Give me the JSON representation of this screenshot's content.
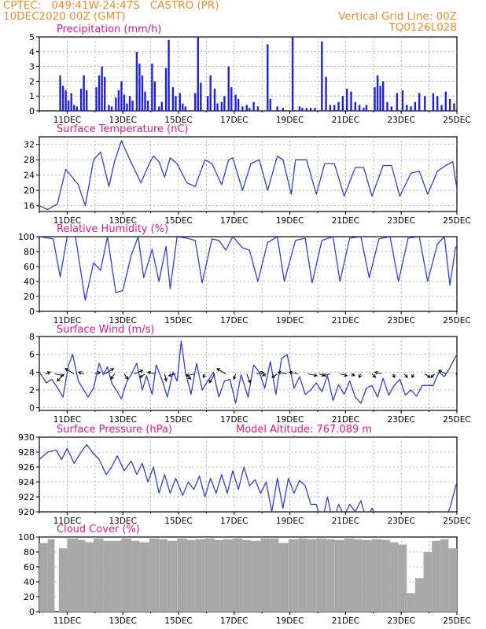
{
  "header": {
    "line1_left": "CPTEC:   049:41W-24:47S   CASTRO (PR)",
    "line2_left": "10DEC2020 00Z (GMT)",
    "line1_right": "Vertical Grid Line: 00Z",
    "line2_right": "TQ0126L028"
  },
  "colors": {
    "header": "#f08c28",
    "title": "#e0198c",
    "line": "#2f3fd8",
    "bar": "#2020e0",
    "cloud": "#a8a8a8",
    "grid": "#a0a0a0",
    "arrow": "#000000"
  },
  "x_ticks": [
    "11DEC",
    "13DEC",
    "15DEC",
    "17DEC",
    "19DEC",
    "21DEC",
    "23DEC",
    "25DEC"
  ],
  "x_tick_days": [
    1,
    3,
    5,
    7,
    9,
    11,
    13,
    15
  ],
  "chart_data": [
    {
      "id": "precip",
      "type": "bar",
      "title": "Precipitation (mm/h)",
      "x_unit": "days since 10DEC2020 00Z",
      "ylim": [
        0,
        5
      ],
      "yticks": [
        0,
        1,
        2,
        3,
        4,
        5
      ],
      "x": [
        0.75,
        0.85,
        0.95,
        1.05,
        1.15,
        1.25,
        1.35,
        1.5,
        1.6,
        1.7,
        2.05,
        2.15,
        2.25,
        2.35,
        2.5,
        2.6,
        2.75,
        2.85,
        2.95,
        3.05,
        3.15,
        3.25,
        3.35,
        3.5,
        3.6,
        3.7,
        3.8,
        3.9,
        4.05,
        4.15,
        4.3,
        4.4,
        4.55,
        4.65,
        4.8,
        4.9,
        5.05,
        5.15,
        5.25,
        5.6,
        5.7,
        5.8,
        6.05,
        6.15,
        6.3,
        6.4,
        6.55,
        6.65,
        6.8,
        6.9,
        7.05,
        7.15,
        7.3,
        7.45,
        7.55,
        7.7,
        7.85,
        8.2,
        8.3,
        8.55,
        8.75,
        9.1,
        9.35,
        9.45,
        9.6,
        9.75,
        9.9,
        10.15,
        10.3,
        10.45,
        10.6,
        10.75,
        10.9,
        11.05,
        11.2,
        11.35,
        11.5,
        11.65,
        11.75,
        12.05,
        12.15,
        12.25,
        12.35,
        12.5,
        12.65,
        12.85,
        13.05,
        13.2,
        13.35,
        13.5,
        13.65,
        13.85,
        14.15,
        14.3,
        14.45,
        14.6,
        14.75,
        14.9
      ],
      "values": [
        2.4,
        1.7,
        1.4,
        0.7,
        1.2,
        0.4,
        0.3,
        1.5,
        2.4,
        1.4,
        1.6,
        2.4,
        3.0,
        2.3,
        0.4,
        0.3,
        0.9,
        1.4,
        2.0,
        1.1,
        0.5,
        1.0,
        0.7,
        4.0,
        3.2,
        2.4,
        1.3,
        0.7,
        3.2,
        2.0,
        0.3,
        0.6,
        2.9,
        4.8,
        1.6,
        1.0,
        1.2,
        0.5,
        0.3,
        1.2,
        5.0,
        1.9,
        1.0,
        2.4,
        1.5,
        0.5,
        0.6,
        1.0,
        3.0,
        1.6,
        1.1,
        0.8,
        0.3,
        0.4,
        0.2,
        0.6,
        0.3,
        4.5,
        0.8,
        0.3,
        0.2,
        5.0,
        0.3,
        0.2,
        0.2,
        0.2,
        0.2,
        4.7,
        2.3,
        0.4,
        0.4,
        0.6,
        1.0,
        1.5,
        1.3,
        0.6,
        0.4,
        0.2,
        0.4,
        1.6,
        2.4,
        1.7,
        2.0,
        0.6,
        0.3,
        1.2,
        1.4,
        0.4,
        0.3,
        0.6,
        1.2,
        1.0,
        1.2,
        1.0,
        0.4,
        1.3,
        0.8,
        0.5
      ]
    },
    {
      "id": "temp",
      "type": "line",
      "title": "Surface Temperature (nC)",
      "x_unit": "days since 10DEC2020 00Z",
      "ylim": [
        14.5,
        34
      ],
      "yticks": [
        16,
        20,
        24,
        28,
        32
      ],
      "x": [
        0,
        0.3,
        0.65,
        0.95,
        1.4,
        1.65,
        1.95,
        2.2,
        2.5,
        2.7,
        2.95,
        3.25,
        3.65,
        3.95,
        4.1,
        4.3,
        4.5,
        4.7,
        4.95,
        5.3,
        5.6,
        5.95,
        6.2,
        6.55,
        6.8,
        6.95,
        7.3,
        7.6,
        7.9,
        8.2,
        8.55,
        8.75,
        9.05,
        9.2,
        9.6,
        9.95,
        10.25,
        10.6,
        10.95,
        11.35,
        11.65,
        11.95,
        12.35,
        12.65,
        12.95,
        13.35,
        13.65,
        13.95,
        14.3,
        14.6,
        14.85,
        15
      ],
      "values": [
        16,
        15,
        16.5,
        25.5,
        21.5,
        16,
        28,
        30,
        21,
        27.5,
        33,
        28,
        22,
        27,
        29,
        27.5,
        23.5,
        28.5,
        27,
        22,
        21,
        28,
        27,
        21.5,
        28,
        28.5,
        20,
        27,
        28,
        20,
        29,
        28,
        19,
        28,
        28,
        19,
        27,
        27,
        18.5,
        26,
        26,
        18.5,
        26.5,
        26.5,
        18.5,
        24.5,
        25,
        19,
        25,
        26.5,
        27.5,
        20.5
      ]
    },
    {
      "id": "rh",
      "type": "line",
      "title": "Relative Humidity (%)",
      "x_unit": "days since 10DEC2020 00Z",
      "ylim": [
        0,
        100
      ],
      "yticks": [
        0,
        20,
        40,
        60,
        80,
        100
      ],
      "x": [
        0,
        0.5,
        0.75,
        1.0,
        1.3,
        1.65,
        1.95,
        2.2,
        2.45,
        2.75,
        3.0,
        3.3,
        3.55,
        3.75,
        4.05,
        4.3,
        4.55,
        4.7,
        4.95,
        5.3,
        5.6,
        5.85,
        6.2,
        6.45,
        6.7,
        6.95,
        7.3,
        7.55,
        7.85,
        8.2,
        8.55,
        8.8,
        9.2,
        9.55,
        9.8,
        10.15,
        10.55,
        10.8,
        11.15,
        11.55,
        11.85,
        12.2,
        12.6,
        12.9,
        13.25,
        13.65,
        13.95,
        14.3,
        14.55,
        14.75,
        14.95,
        15
      ],
      "values": [
        100,
        97,
        46,
        100,
        100,
        15,
        65,
        55,
        100,
        25,
        28,
        75,
        100,
        45,
        83,
        40,
        87,
        30,
        100,
        98,
        95,
        38,
        97,
        95,
        82,
        100,
        85,
        82,
        40,
        92,
        100,
        40,
        95,
        98,
        38,
        95,
        100,
        40,
        98,
        100,
        45,
        97,
        100,
        40,
        98,
        100,
        40,
        90,
        100,
        35,
        85,
        88
      ]
    },
    {
      "id": "wind",
      "type": "line",
      "title": "Surface Wind (m/s)",
      "x_unit": "days since 10DEC2020 00Z",
      "ylim": [
        -0.3,
        8
      ],
      "yticks": [
        0,
        2,
        4,
        6,
        8
      ],
      "x": [
        0,
        0.25,
        0.45,
        0.6,
        0.85,
        1.05,
        1.2,
        1.4,
        1.6,
        1.75,
        1.95,
        2.15,
        2.3,
        2.45,
        2.6,
        2.8,
        2.95,
        3.15,
        3.3,
        3.5,
        3.7,
        3.85,
        4.05,
        4.2,
        4.4,
        4.6,
        4.8,
        4.95,
        5.1,
        5.25,
        5.45,
        5.65,
        5.85,
        6.05,
        6.25,
        6.45,
        6.65,
        6.85,
        7.05,
        7.25,
        7.5,
        7.7,
        7.9,
        8.1,
        8.3,
        8.5,
        8.7,
        8.9,
        9.15,
        9.35,
        9.55,
        9.75,
        9.95,
        10.15,
        10.35,
        10.55,
        10.75,
        10.95,
        11.15,
        11.35,
        11.55,
        11.75,
        11.95,
        12.15,
        12.35,
        12.55,
        12.75,
        12.95,
        13.15,
        13.35,
        13.55,
        13.75,
        13.95,
        14.15,
        14.35,
        14.55,
        14.75,
        15
      ],
      "values": [
        4,
        2.8,
        3.2,
        2.5,
        1.2,
        4.8,
        6,
        3,
        2,
        1.2,
        2.2,
        5,
        3.7,
        4.6,
        2.8,
        1.8,
        1,
        3,
        3.7,
        5,
        2,
        3.6,
        1.5,
        4.8,
        3.2,
        1.2,
        4,
        3,
        7.5,
        4,
        1.5,
        5,
        2,
        3,
        4,
        1.2,
        3,
        3.2,
        0.5,
        3.7,
        1.2,
        4.8,
        4,
        2.2,
        5.2,
        1.5,
        5.5,
        6,
        2.2,
        3.5,
        1.5,
        2,
        2.8,
        1.8,
        3.6,
        0.8,
        2.6,
        1.5,
        3,
        1.2,
        0.5,
        2.2,
        2.5,
        1.2,
        3.3,
        1.4,
        2.5,
        3.2,
        1.4,
        2,
        1.3,
        2.5,
        2.5,
        2.5,
        4,
        3.5,
        4.5,
        6
      ]
    },
    {
      "id": "press",
      "type": "line",
      "title": "Surface Pressure (hPa)",
      "subtitle": "Model Altitude: 767.089 m",
      "x_unit": "days since 10DEC2020 00Z",
      "ylim": [
        920,
        930
      ],
      "yticks": [
        920,
        922,
        924,
        926,
        928,
        930
      ],
      "x": [
        0,
        0.3,
        0.6,
        0.8,
        1.0,
        1.25,
        1.5,
        1.7,
        1.9,
        2.15,
        2.4,
        2.6,
        2.8,
        3.05,
        3.3,
        3.5,
        3.7,
        3.9,
        4.1,
        4.3,
        4.5,
        4.7,
        4.9,
        5.15,
        5.35,
        5.55,
        5.75,
        5.95,
        6.15,
        6.35,
        6.55,
        6.75,
        6.95,
        7.15,
        7.35,
        7.55,
        7.75,
        7.95,
        8.15,
        8.35,
        8.55,
        8.75,
        8.95,
        9.15,
        9.35,
        9.55,
        9.75,
        9.95,
        10.15,
        10.35,
        10.55,
        10.75,
        10.95,
        11.15,
        11.35,
        11.55,
        11.75,
        11.95,
        12.15,
        12.35,
        12.55,
        12.75,
        12.95,
        13.15,
        13.35,
        13.55,
        13.75,
        13.95,
        14.15,
        14.35,
        14.55,
        14.75,
        15
      ],
      "values": [
        927,
        928,
        928.3,
        927,
        928.5,
        926.5,
        928,
        929,
        928,
        927,
        925,
        926,
        927.5,
        925.5,
        926.8,
        925,
        926.5,
        924,
        926,
        922.5,
        925,
        922.5,
        924.5,
        922.2,
        924,
        923,
        924.8,
        922,
        924.5,
        922.5,
        925,
        922.5,
        925.5,
        923,
        926,
        923.5,
        924.3,
        922.5,
        924,
        920,
        924.5,
        920.5,
        924.5,
        922.5,
        924.2,
        923.5,
        921,
        921,
        918.5,
        922,
        918.5,
        921,
        919.5,
        921,
        920,
        921.5,
        919,
        920.5,
        919,
        918,
        919.5,
        918.5,
        920,
        918,
        919,
        918,
        919.5,
        918,
        920,
        918.5,
        919,
        920.5,
        924
      ]
    },
    {
      "id": "cloud",
      "type": "bar",
      "title": "Cloud Cover (%)",
      "x_unit": "days since 10DEC2020 00Z",
      "ylim": [
        0,
        100
      ],
      "yticks": [
        0,
        20,
        40,
        60,
        80,
        100
      ],
      "x": [
        0,
        0.3,
        0.55,
        0.7,
        1.0,
        1.4,
        1.65,
        1.95,
        2.3,
        2.6,
        2.95,
        3.3,
        3.6,
        3.95,
        4.3,
        4.6,
        4.95,
        5.3,
        5.6,
        5.95,
        6.3,
        6.6,
        6.95,
        7.3,
        7.6,
        7.95,
        8.3,
        8.6,
        8.95,
        9.3,
        9.6,
        9.95,
        10.3,
        10.6,
        10.95,
        11.3,
        11.6,
        11.95,
        12.3,
        12.6,
        12.9,
        13.2,
        13.5,
        13.8,
        14.1,
        14.4,
        14.7,
        15
      ],
      "values": [
        92,
        97,
        0,
        85,
        98,
        96,
        93,
        98,
        95,
        95,
        98,
        95,
        93,
        98,
        97,
        95,
        98,
        96,
        97,
        98,
        96,
        97,
        98,
        96,
        95,
        98,
        98,
        92,
        97,
        98,
        97,
        98,
        97,
        96,
        98,
        97,
        96,
        97,
        96,
        93,
        90,
        25,
        45,
        80,
        95,
        97,
        85,
        98
      ]
    }
  ],
  "wind_arrows": {
    "x": [
      0.2,
      0.55,
      0.9,
      1.25,
      1.6,
      2.0,
      2.35,
      2.7,
      3.05,
      3.4,
      3.8,
      4.15,
      4.5,
      4.9,
      5.25,
      5.6,
      5.95,
      6.3,
      6.7,
      7.05,
      7.45,
      7.8,
      8.15,
      8.55,
      8.9,
      9.3,
      9.65,
      10.05,
      10.45,
      10.8,
      11.2,
      11.55,
      11.95,
      12.3,
      12.7,
      13.1,
      13.45,
      13.85,
      14.2,
      14.6,
      14.95
    ],
    "u": [
      1.5,
      2.5,
      -2,
      -2.5,
      -1.5,
      1.5,
      2.5,
      -1,
      1,
      2.5,
      -1.5,
      -2,
      0.5,
      -2,
      1.5,
      -2.5,
      -0.5,
      -1.5,
      -2.5,
      -0.5,
      1,
      2,
      -1,
      -1.5,
      -2.5,
      -2.5,
      2.5,
      1.5,
      -2,
      2,
      1,
      -0.5,
      1,
      -2,
      0.5,
      1,
      -0.5,
      1.5,
      -1,
      -2,
      1
    ],
    "v": [
      0.5,
      -0.5,
      -2,
      1.5,
      0.5,
      0.5,
      1.5,
      -1.5,
      -1.5,
      1,
      -1,
      0.5,
      -2,
      -0.5,
      -1.5,
      -0.5,
      -1,
      -2.5,
      1.5,
      -1.5,
      -2.5,
      0.5,
      -0.5,
      -1,
      0.5,
      0.5,
      -0.5,
      -0.5,
      -0.5,
      -0.5,
      -0.5,
      -1,
      -1,
      0.5,
      -1,
      -1,
      -1,
      -1,
      -1,
      1,
      0
    ]
  }
}
